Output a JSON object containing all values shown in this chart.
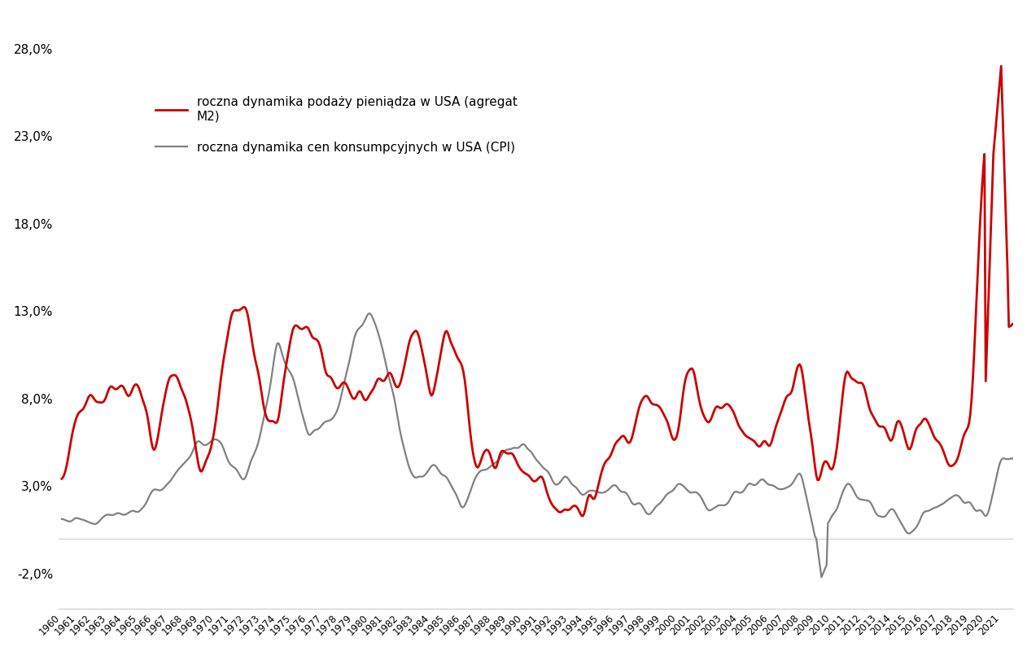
{
  "legend_m2": "roczna dynamika podaży pieniądza w USA (agregat\nM2)",
  "legend_cpi": "roczna dynamika cen konsumpcyjnych w USA (CPI)",
  "m2_color": "#cc0000",
  "cpi_color": "#808080",
  "m2_linewidth": 2.0,
  "cpi_linewidth": 1.6,
  "ylim": [
    -0.04,
    0.3
  ],
  "yticks": [
    -0.02,
    0.03,
    0.08,
    0.13,
    0.18,
    0.23,
    0.28
  ],
  "ytick_labels": [
    "-2,0%",
    "3,0%",
    "8,0%",
    "13,0%",
    "18,0%",
    "23,0%",
    "28,0%"
  ],
  "background_color": "#ffffff",
  "figsize": [
    12.62,
    8.0
  ],
  "dpi": 100
}
